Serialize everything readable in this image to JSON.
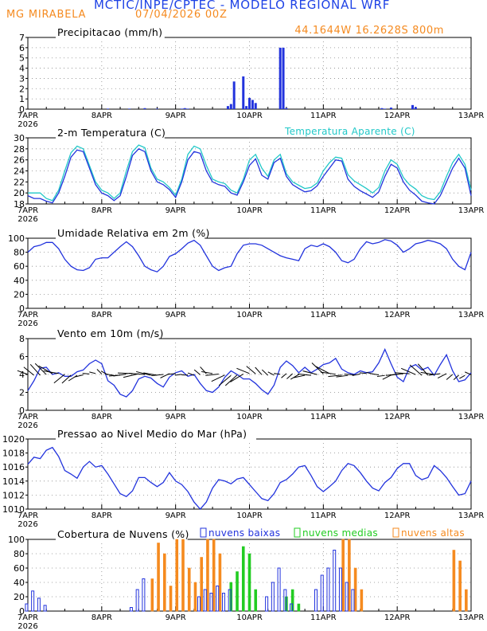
{
  "header": {
    "title": "MCTIC/INPE/CPTEC - MODELO REGIONAL WRF",
    "station": "MG MIRABELA",
    "run": "07/04/2026 00Z",
    "coords": "44.1644W 16.2628S 800m"
  },
  "colors": {
    "title": "#1f43e6",
    "header_orange": "#f58a1f",
    "precip": "#2233dd",
    "temp": "#2233dd",
    "temp_apparent": "#22c8c8",
    "rh": "#2233dd",
    "wind": "#2233dd",
    "arrows": "#000000",
    "pressure": "#2233dd",
    "cloud_low": "#2233dd",
    "cloud_mid": "#22cc22",
    "cloud_high": "#f58a1f"
  },
  "x_ticks": [
    "7APR",
    "8APR",
    "9APR",
    "10APR",
    "11APR",
    "12APR",
    "13APR"
  ],
  "x_year": "2026",
  "chart_data": [
    {
      "type": "bar",
      "title": "Precipitacao (mm/h)",
      "ylim": [
        0,
        7
      ],
      "yticks": [
        0,
        1,
        2,
        3,
        4,
        5,
        6,
        7
      ],
      "x_hours": [
        26,
        33,
        38,
        42,
        50,
        51,
        52,
        65,
        66,
        67,
        70,
        71,
        72,
        73,
        74,
        82,
        83,
        84,
        115,
        116,
        118,
        125,
        126
      ],
      "values": [
        0.05,
        0.05,
        0.1,
        0.05,
        0.05,
        0.1,
        0.05,
        0.3,
        0.5,
        2.7,
        3.2,
        0.3,
        1.1,
        0.9,
        0.6,
        6.0,
        6.0,
        0.1,
        0.1,
        0.05,
        0.15,
        0.4,
        0.2
      ]
    },
    {
      "type": "line",
      "title": "2-m Temperatura (C)",
      "legend": "Temperatura Aparente (C)",
      "ylim": [
        18,
        30
      ],
      "yticks": [
        18,
        20,
        22,
        24,
        26,
        28,
        30
      ],
      "x_hours": [
        0,
        2,
        4,
        6,
        8,
        10,
        12,
        14,
        16,
        18,
        20,
        22,
        24,
        26,
        28,
        30,
        32,
        34,
        36,
        38,
        40,
        42,
        44,
        46,
        48,
        50,
        52,
        54,
        56,
        58,
        60,
        62,
        64,
        66,
        68,
        70,
        72,
        74,
        76,
        78,
        80,
        82,
        84,
        86,
        88,
        90,
        92,
        94,
        96,
        98,
        100,
        102,
        104,
        106,
        108,
        110,
        112,
        114,
        116,
        118,
        120,
        122,
        124,
        126,
        128,
        130,
        132,
        134,
        136,
        138,
        140,
        142,
        144
      ],
      "series": [
        {
          "name": "2-m Temperatura (C)",
          "values": [
            19.5,
            19,
            19,
            18.5,
            18.2,
            20,
            23,
            26.5,
            27.8,
            27.5,
            24.5,
            21.5,
            20,
            19.5,
            18.6,
            19.5,
            23,
            26.8,
            28,
            27.5,
            24,
            22,
            21.5,
            20.6,
            19.2,
            22,
            26,
            27.5,
            27.2,
            24,
            22,
            21.5,
            21.2,
            20,
            19.6,
            22,
            25,
            26.2,
            23.2,
            22.5,
            25.5,
            26.3,
            23,
            21.5,
            20.8,
            20.2,
            20.4,
            21.3,
            23,
            24.5,
            26,
            25.8,
            22.5,
            21.2,
            20.4,
            19.8,
            19.2,
            20.2,
            23,
            25.2,
            24.5,
            22,
            20.5,
            19.6,
            18.5,
            18.2,
            18,
            19.5,
            22,
            24.5,
            26.3,
            24.5,
            19.5
          ]
        },
        {
          "name": "Temperatura Aparente (C)",
          "values": [
            20,
            20,
            20,
            19,
            18.6,
            20.5,
            24,
            27.3,
            28.5,
            28,
            25,
            22,
            20.5,
            20,
            19,
            20,
            24,
            27.5,
            28.7,
            28.2,
            24.5,
            22.5,
            22,
            21,
            19.6,
            22.5,
            27,
            28.5,
            28,
            25,
            22.5,
            22,
            21.7,
            20.5,
            20,
            22.5,
            26,
            27,
            24.5,
            23,
            26,
            27,
            23.5,
            22,
            21.4,
            20.8,
            21,
            21.8,
            24,
            25.5,
            26.5,
            26.3,
            23.3,
            22.2,
            21.5,
            20.8,
            20,
            21,
            24,
            26,
            25.2,
            22.8,
            21.5,
            20.7,
            19.5,
            19,
            18.8,
            20.2,
            23,
            25.5,
            27,
            25.2,
            20.5
          ]
        }
      ]
    },
    {
      "type": "line",
      "title": "Umidade Relativa em 2m (%)",
      "ylim": [
        0,
        100
      ],
      "yticks": [
        0,
        20,
        40,
        60,
        80,
        100
      ],
      "x_hours": [
        0,
        2,
        4,
        6,
        8,
        10,
        12,
        14,
        16,
        18,
        20,
        22,
        24,
        26,
        28,
        30,
        32,
        34,
        36,
        38,
        40,
        42,
        44,
        46,
        48,
        50,
        52,
        54,
        56,
        58,
        60,
        62,
        64,
        66,
        68,
        70,
        72,
        74,
        76,
        78,
        80,
        82,
        84,
        86,
        88,
        90,
        92,
        94,
        96,
        98,
        100,
        102,
        104,
        106,
        108,
        110,
        112,
        114,
        116,
        118,
        120,
        122,
        124,
        126,
        128,
        130,
        132,
        134,
        136,
        138,
        140,
        142,
        144
      ],
      "series": [
        {
          "name": "Umidade Relativa em 2m (%)",
          "values": [
            80,
            88,
            90,
            94,
            94,
            85,
            70,
            60,
            55,
            54,
            58,
            70,
            72,
            72,
            80,
            88,
            95,
            88,
            75,
            60,
            55,
            52,
            60,
            74,
            78,
            85,
            93,
            97,
            90,
            75,
            60,
            54,
            58,
            60,
            78,
            90,
            92,
            92,
            90,
            85,
            80,
            75,
            72,
            70,
            68,
            85,
            90,
            88,
            92,
            88,
            80,
            68,
            65,
            70,
            85,
            95,
            92,
            94,
            98,
            96,
            90,
            80,
            85,
            92,
            94,
            97,
            95,
            92,
            85,
            70,
            60,
            55,
            80
          ]
        }
      ]
    },
    {
      "type": "line",
      "title": "Vento em 10m (m/s)",
      "ylim": [
        0,
        8
      ],
      "yticks": [
        0,
        2,
        4,
        6,
        8
      ],
      "x_hours": [
        0,
        2,
        4,
        6,
        8,
        10,
        12,
        14,
        16,
        18,
        20,
        22,
        24,
        26,
        28,
        30,
        32,
        34,
        36,
        38,
        40,
        42,
        44,
        46,
        48,
        50,
        52,
        54,
        56,
        58,
        60,
        62,
        64,
        66,
        68,
        70,
        72,
        74,
        76,
        78,
        80,
        82,
        84,
        86,
        88,
        90,
        92,
        94,
        96,
        98,
        100,
        102,
        104,
        106,
        108,
        110,
        112,
        114,
        116,
        118,
        120,
        122,
        124,
        126,
        128,
        130,
        132,
        134,
        136,
        138,
        140,
        142,
        144
      ],
      "series": [
        {
          "name": "Vento em 10m (m/s)",
          "values": [
            2.2,
            3.3,
            4.7,
            4.8,
            4,
            4.2,
            3.8,
            3.8,
            4.3,
            4.5,
            5.2,
            5.6,
            5.2,
            3.3,
            2.8,
            1.8,
            1.5,
            2.2,
            3.5,
            3.8,
            3.6,
            3,
            2.6,
            3.7,
            4.2,
            4.4,
            3.8,
            4,
            3,
            2.2,
            2,
            2.6,
            3.7,
            4.4,
            4,
            3.5,
            3.5,
            3,
            2.3,
            1.8,
            2.8,
            4.8,
            5.5,
            5,
            4.2,
            4.8,
            4.2,
            4.6,
            5.1,
            5.3,
            5.8,
            4.6,
            4.2,
            4,
            4.4,
            4.2,
            4.3,
            5.3,
            6.8,
            5.2,
            3.7,
            3.2,
            4.8,
            5.1,
            4.5,
            4.8,
            3.9,
            5.1,
            6.2,
            4.4,
            3.2,
            3.4,
            4.2
          ]
        }
      ]
    },
    {
      "type": "line",
      "title": "Pressao ao Nivel Medio do Mar (hPa)",
      "ylim": [
        1010,
        1020
      ],
      "yticks": [
        1010,
        1012,
        1014,
        1016,
        1018,
        1020
      ],
      "x_hours": [
        0,
        2,
        4,
        6,
        8,
        10,
        12,
        14,
        16,
        18,
        20,
        22,
        24,
        26,
        28,
        30,
        32,
        34,
        36,
        38,
        40,
        42,
        44,
        46,
        48,
        50,
        52,
        54,
        56,
        58,
        60,
        62,
        64,
        66,
        68,
        70,
        72,
        74,
        76,
        78,
        80,
        82,
        84,
        86,
        88,
        90,
        92,
        94,
        96,
        98,
        100,
        102,
        104,
        106,
        108,
        110,
        112,
        114,
        116,
        118,
        120,
        122,
        124,
        126,
        128,
        130,
        132,
        134,
        136,
        138,
        140,
        142,
        144
      ],
      "series": [
        {
          "name": "Pressao ao Nivel Medio do Mar (hPa)",
          "values": [
            1016.4,
            1017.4,
            1017.2,
            1018.4,
            1018.8,
            1017.5,
            1015.5,
            1015,
            1014.4,
            1016,
            1016.8,
            1016,
            1016.2,
            1015,
            1013.6,
            1012.2,
            1011.8,
            1012.6,
            1014.5,
            1014.5,
            1013.8,
            1013.2,
            1013.8,
            1015.2,
            1014,
            1013.5,
            1012.5,
            1011,
            1010,
            1011,
            1013,
            1014.2,
            1014,
            1013.6,
            1014.3,
            1014.5,
            1013.5,
            1012.5,
            1011.5,
            1011.2,
            1012.2,
            1013.8,
            1014.2,
            1015,
            1016,
            1016.2,
            1014.8,
            1013.2,
            1012.5,
            1013.2,
            1014,
            1015.5,
            1016.5,
            1016.2,
            1015.2,
            1014,
            1013,
            1012.6,
            1013.8,
            1014.5,
            1015.8,
            1016.5,
            1016.5,
            1014.8,
            1014.2,
            1014.5,
            1016.2,
            1015.5,
            1014.5,
            1013.2,
            1012,
            1012.2,
            1014
          ]
        }
      ]
    },
    {
      "type": "bar",
      "title": "Cobertura de Nuvens (%)",
      "ylim": [
        0,
        100
      ],
      "yticks": [
        0,
        20,
        40,
        60,
        80,
        100
      ],
      "x_hours": [
        0,
        2,
        4,
        6,
        8,
        10,
        12,
        14,
        16,
        18,
        20,
        22,
        24,
        26,
        28,
        30,
        32,
        34,
        36,
        38,
        40,
        42,
        44,
        46,
        48,
        50,
        52,
        54,
        56,
        58,
        60,
        62,
        64,
        66,
        68,
        70,
        72,
        74,
        76,
        78,
        80,
        82,
        84,
        86,
        88,
        90,
        92,
        94,
        96,
        98,
        100,
        102,
        104,
        106,
        108,
        110,
        112,
        114,
        116,
        118,
        120,
        122,
        124,
        126,
        128,
        130,
        132,
        134,
        136,
        138,
        140,
        142,
        144
      ],
      "series": [
        {
          "name": "nuvens baixas",
          "values": [
            10,
            28,
            18,
            8,
            0,
            0,
            0,
            0,
            0,
            0,
            0,
            0,
            0,
            0,
            0,
            0,
            0,
            5,
            30,
            45,
            0,
            0,
            0,
            0,
            0,
            0,
            0,
            0,
            20,
            30,
            25,
            35,
            25,
            30,
            0,
            0,
            0,
            0,
            0,
            20,
            40,
            60,
            30,
            10,
            0,
            0,
            0,
            30,
            50,
            60,
            85,
            60,
            40,
            30,
            0,
            0,
            0,
            0,
            0,
            0,
            0,
            0,
            0,
            0,
            0,
            0,
            0,
            0,
            0,
            0,
            0,
            0,
            0
          ]
        },
        {
          "name": "nuvens medias",
          "values": [
            0,
            0,
            0,
            0,
            0,
            0,
            0,
            0,
            0,
            0,
            0,
            0,
            0,
            0,
            0,
            0,
            0,
            0,
            0,
            0,
            0,
            0,
            0,
            0,
            0,
            0,
            0,
            0,
            0,
            0,
            0,
            0,
            0,
            40,
            55,
            90,
            80,
            30,
            0,
            0,
            0,
            0,
            20,
            30,
            10,
            0,
            0,
            0,
            0,
            0,
            0,
            0,
            0,
            0,
            0,
            0,
            0,
            0,
            0,
            0,
            0,
            0,
            0,
            0,
            0,
            0,
            0,
            0,
            0,
            0,
            0,
            0,
            0
          ]
        },
        {
          "name": "nuvens altas",
          "values": [
            0,
            0,
            0,
            0,
            0,
            0,
            0,
            0,
            0,
            0,
            0,
            0,
            0,
            0,
            0,
            0,
            0,
            0,
            0,
            0,
            45,
            95,
            80,
            35,
            100,
            100,
            60,
            40,
            75,
            100,
            100,
            80,
            0,
            0,
            0,
            0,
            0,
            0,
            0,
            0,
            0,
            0,
            0,
            0,
            0,
            0,
            0,
            0,
            0,
            0,
            0,
            100,
            100,
            60,
            30,
            0,
            0,
            0,
            0,
            0,
            0,
            0,
            0,
            0,
            0,
            0,
            0,
            0,
            0,
            85,
            70,
            30,
            0
          ]
        }
      ]
    }
  ]
}
